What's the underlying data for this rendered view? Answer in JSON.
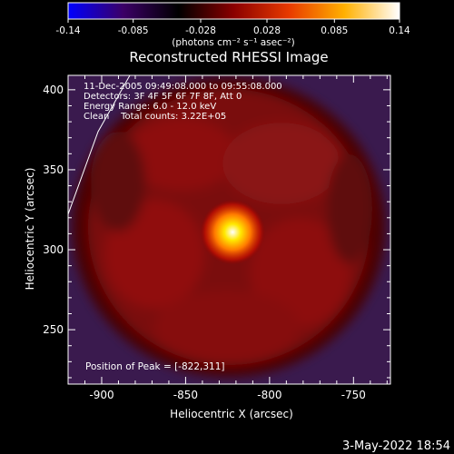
{
  "chart_data": {
    "type": "heatmap",
    "title": "Reconstructed RHESSI Image",
    "colorbar": {
      "range": [
        -0.14,
        0.14
      ],
      "ticks": [
        "-0.14",
        "-0.085",
        "-0.028",
        "0.028",
        "0.085",
        "0.14"
      ],
      "unit_label": "(photons cm⁻² s⁻¹ asec⁻²)",
      "colormap": [
        "#0000ff",
        "#3b0066",
        "#000000",
        "#8b0000",
        "#e83a00",
        "#ffb000",
        "#ffffff"
      ]
    },
    "xlabel": "Heliocentric X (arcsec)",
    "ylabel": "Heliocentric Y (arcsec)",
    "xlim": [
      -920,
      -728
    ],
    "ylim": [
      216,
      409
    ],
    "x_ticks": [
      "-900",
      "-850",
      "-800",
      "-750"
    ],
    "y_ticks": [
      "250",
      "300",
      "350",
      "400"
    ],
    "annotations": [
      "11-Dec-2005 09:49:08.000 to 09:55:08.000",
      "Detectors: 3F 4F 5F 6F 7F 8F, Att 0",
      "Energy Range: 6.0 - 12.0 keV",
      "Clean    Total counts: 3.22E+05"
    ],
    "peak": {
      "label": "Position of Peak = [-822,311]",
      "x": -822,
      "y": 311,
      "value": 0.14
    },
    "background_level": 0.028
  },
  "footer": {
    "date": "3-May-2022 18:54"
  }
}
